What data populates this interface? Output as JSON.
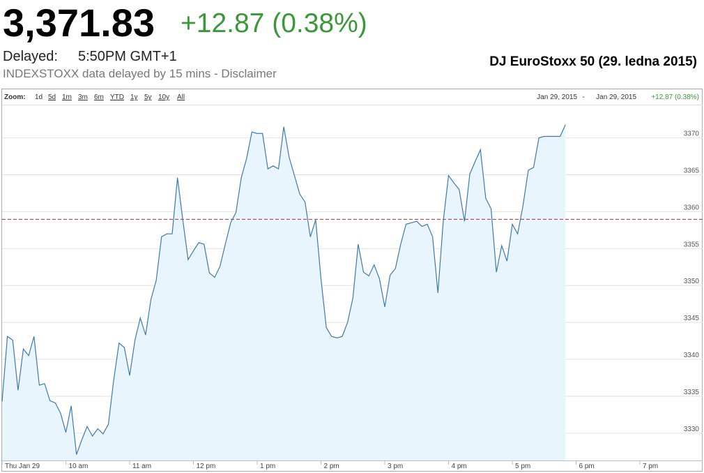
{
  "header": {
    "price": "3,371.83",
    "change": "+12.87 (0.38%)",
    "delayed_label": "Delayed:",
    "delayed_time": "5:50PM GMT+1",
    "disclaimer": "INDEXSTOXX data delayed by 15 mins - Disclaimer"
  },
  "chart_data": {
    "type": "line",
    "title": "DJ EuroStoxx 50 (29. ledna 2015)",
    "zoom_label": "Zoom:",
    "zoom_options": [
      "1d",
      "5d",
      "1m",
      "3m",
      "6m",
      "YTD",
      "1y",
      "5y",
      "10y",
      "All"
    ],
    "range_start": "Jan 29, 2015",
    "range_separator": "-",
    "range_end": "Jan 29, 2015",
    "range_change": "+12.87 (0.38%)",
    "x": [
      540,
      545,
      550,
      555,
      560,
      565,
      570,
      575,
      580,
      585,
      590,
      595,
      600,
      605,
      610,
      615,
      620,
      625,
      630,
      635,
      640,
      645,
      650,
      655,
      660,
      665,
      670,
      675,
      680,
      685,
      690,
      695,
      700,
      705,
      710,
      715,
      720,
      725,
      730,
      735,
      740,
      745,
      750,
      755,
      760,
      765,
      770,
      775,
      780,
      785,
      790,
      795,
      800,
      805,
      810,
      815,
      820,
      825,
      830,
      835,
      840,
      845,
      850,
      855,
      860,
      865,
      870,
      875,
      880,
      885,
      890,
      895,
      900,
      905,
      910,
      915,
      920,
      925,
      930,
      935,
      940,
      945,
      950,
      955,
      960,
      965,
      970,
      975,
      980,
      985,
      990,
      995,
      1000,
      1005,
      1010,
      1015,
      1020,
      1025,
      1030,
      1035,
      1040,
      1045,
      1050,
      1055,
      1060,
      1065,
      1070
    ],
    "values": [
      3334.3,
      3343.1,
      3342.6,
      3335.8,
      3341.4,
      3340.5,
      3343.1,
      3336.5,
      3336.7,
      3334.4,
      3334.1,
      3332.7,
      3330.1,
      3333.7,
      3327.1,
      3329.1,
      3330.9,
      3329.6,
      3330.6,
      3329.9,
      3331.2,
      3337.2,
      3342.2,
      3341.6,
      3337.8,
      3342.6,
      3345.6,
      3343.3,
      3348.1,
      3350.7,
      3356.6,
      3357.0,
      3357.0,
      3364.6,
      3358.9,
      3353.5,
      3354.7,
      3355.8,
      3355.6,
      3351.7,
      3351.1,
      3352.6,
      3355.6,
      3358.5,
      3359.9,
      3364.6,
      3367.2,
      3370.8,
      3370.6,
      3370.6,
      3365.8,
      3366.2,
      3365.8,
      3371.5,
      3367.4,
      3364.9,
      3362.4,
      3361.3,
      3356.6,
      3358.9,
      3350.9,
      3344.3,
      3343.1,
      3342.9,
      3343.1,
      3345.0,
      3348.3,
      3355.6,
      3351.8,
      3351.3,
      3352.8,
      3350.9,
      3347.1,
      3351.4,
      3352.3,
      3355.6,
      3358.3,
      3358.5,
      3358.7,
      3358.0,
      3358.3,
      3356.6,
      3349.0,
      3358.7,
      3364.9,
      3363.9,
      3363.0,
      3358.7,
      3365.1,
      3366.8,
      3368.4,
      3361.8,
      3360.4,
      3351.8,
      3355.4,
      3353.3,
      3358.3,
      3357.0,
      3360.8,
      3365.6,
      3366.0,
      3370.0,
      3370.2,
      3370.2,
      3370.2,
      3370.2,
      3371.8
    ],
    "color": "#3f78aa",
    "area_color": "#e8f5fd",
    "previous_close": 3358.96,
    "previous_close_color": "#a2302c",
    "xlim": [
      540,
      1199
    ],
    "xticks": [
      {
        "value": 540,
        "label": "Thu Jan 29"
      },
      {
        "value": 600,
        "label": "10 am"
      },
      {
        "value": 660,
        "label": "11 am"
      },
      {
        "value": 720,
        "label": "12 pm"
      },
      {
        "value": 780,
        "label": "1 pm"
      },
      {
        "value": 840,
        "label": "2 pm"
      },
      {
        "value": 900,
        "label": "3 pm"
      },
      {
        "value": 960,
        "label": "4 pm"
      },
      {
        "value": 1020,
        "label": "5 pm"
      },
      {
        "value": 1080,
        "label": "6 pm"
      },
      {
        "value": 1140,
        "label": "7 pm"
      }
    ],
    "ylim": [
      3326.3,
      3374.5
    ],
    "yticks": [
      3330,
      3335,
      3340,
      3345,
      3350,
      3355,
      3360,
      3365,
      3370
    ],
    "grid": true
  }
}
